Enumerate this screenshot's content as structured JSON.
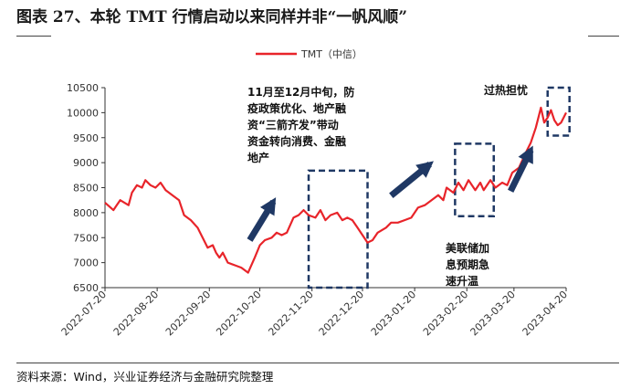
{
  "figure": {
    "title": "图表 27、本轮 TMT 行情启动以来同样并非“一帆风顺”",
    "source": "资料来源：Wind，兴业证券经济与金融研究院整理"
  },
  "annotations": {
    "policy": [
      "11月至12月中旬，防",
      "疫政策优化、地产融",
      "资“三箭齐发”带动",
      "资金转向消费、金融",
      "地产"
    ],
    "fed": [
      "美联储加",
      "息预期急",
      "速升温"
    ],
    "overheat": "过热担忧"
  },
  "colors": {
    "line": "#e8242a",
    "box": "#1f3864",
    "arrow": "#1f3864"
  },
  "chart_data": {
    "type": "line",
    "title": "",
    "xlabel": "",
    "ylabel": "",
    "ylim": [
      6500,
      10500
    ],
    "yticks": [
      6500,
      7000,
      7500,
      8000,
      8500,
      9000,
      9500,
      10000,
      10500
    ],
    "xticks": [
      "2022-07-20",
      "2022-08-20",
      "2022-09-20",
      "2022-10-20",
      "2022-11-20",
      "2022-12-20",
      "2023-01-20",
      "2023-02-20",
      "2023-03-20",
      "2023-04-20"
    ],
    "legend": "top-right",
    "series": [
      {
        "name": "TMT（中信）",
        "points": [
          [
            "2022-07-20",
            8200
          ],
          [
            "2022-07-25",
            8050
          ],
          [
            "2022-07-29",
            8250
          ],
          [
            "2022-08-03",
            8150
          ],
          [
            "2022-08-05",
            8400
          ],
          [
            "2022-08-08",
            8550
          ],
          [
            "2022-08-11",
            8500
          ],
          [
            "2022-08-13",
            8650
          ],
          [
            "2022-08-16",
            8550
          ],
          [
            "2022-08-19",
            8500
          ],
          [
            "2022-08-22",
            8600
          ],
          [
            "2022-08-25",
            8450
          ],
          [
            "2022-08-29",
            8350
          ],
          [
            "2022-09-02",
            8250
          ],
          [
            "2022-09-05",
            7950
          ],
          [
            "2022-09-09",
            7850
          ],
          [
            "2022-09-13",
            7700
          ],
          [
            "2022-09-16",
            7500
          ],
          [
            "2022-09-19",
            7300
          ],
          [
            "2022-09-22",
            7350
          ],
          [
            "2022-09-24",
            7200
          ],
          [
            "2022-09-26",
            7100
          ],
          [
            "2022-09-28",
            7200
          ],
          [
            "2022-10-01",
            7000
          ],
          [
            "2022-10-05",
            6950
          ],
          [
            "2022-10-09",
            6900
          ],
          [
            "2022-10-13",
            6800
          ],
          [
            "2022-10-17",
            7100
          ],
          [
            "2022-10-20",
            7350
          ],
          [
            "2022-10-23",
            7450
          ],
          [
            "2022-10-27",
            7500
          ],
          [
            "2022-10-30",
            7600
          ],
          [
            "2022-11-02",
            7550
          ],
          [
            "2022-11-05",
            7600
          ],
          [
            "2022-11-09",
            7900
          ],
          [
            "2022-11-12",
            7950
          ],
          [
            "2022-11-15",
            8050
          ],
          [
            "2022-11-18",
            7950
          ],
          [
            "2022-11-22",
            7900
          ],
          [
            "2022-11-25",
            8050
          ],
          [
            "2022-11-28",
            7850
          ],
          [
            "2022-12-01",
            7950
          ],
          [
            "2022-12-05",
            8000
          ],
          [
            "2022-12-08",
            7850
          ],
          [
            "2022-12-11",
            7900
          ],
          [
            "2022-12-14",
            7850
          ],
          [
            "2022-12-17",
            7700
          ],
          [
            "2022-12-20",
            7550
          ],
          [
            "2022-12-23",
            7400
          ],
          [
            "2022-12-26",
            7450
          ],
          [
            "2022-12-29",
            7600
          ],
          [
            "2023-01-03",
            7700
          ],
          [
            "2023-01-06",
            7800
          ],
          [
            "2023-01-10",
            7800
          ],
          [
            "2023-01-14",
            7850
          ],
          [
            "2023-01-18",
            7900
          ],
          [
            "2023-01-22",
            8100
          ],
          [
            "2023-01-26",
            8150
          ],
          [
            "2023-01-30",
            8250
          ],
          [
            "2023-02-03",
            8350
          ],
          [
            "2023-02-06",
            8250
          ],
          [
            "2023-02-08",
            8500
          ],
          [
            "2023-02-12",
            8400
          ],
          [
            "2023-02-15",
            8600
          ],
          [
            "2023-02-18",
            8450
          ],
          [
            "2023-02-21",
            8650
          ],
          [
            "2023-02-25",
            8450
          ],
          [
            "2023-02-28",
            8600
          ],
          [
            "2023-03-02",
            8450
          ],
          [
            "2023-03-06",
            8650
          ],
          [
            "2023-03-09",
            8500
          ],
          [
            "2023-03-13",
            8600
          ],
          [
            "2023-03-16",
            8550
          ],
          [
            "2023-03-19",
            8800
          ],
          [
            "2023-03-23",
            8900
          ],
          [
            "2023-03-27",
            9200
          ],
          [
            "2023-03-30",
            9400
          ],
          [
            "2023-04-02",
            9700
          ],
          [
            "2023-04-05",
            10100
          ],
          [
            "2023-04-07",
            9800
          ],
          [
            "2023-04-09",
            9900
          ],
          [
            "2023-04-11",
            10050
          ],
          [
            "2023-04-13",
            9850
          ],
          [
            "2023-04-15",
            9750
          ],
          [
            "2023-04-17",
            9800
          ],
          [
            "2023-04-20",
            10000
          ]
        ]
      }
    ],
    "boxes": [
      {
        "x": [
          "2022-11-18",
          "2022-12-23"
        ],
        "y": [
          6500,
          8840
        ]
      },
      {
        "x": [
          "2023-02-13",
          "2023-03-08"
        ],
        "y": [
          7930,
          9380
        ]
      },
      {
        "x": [
          "2023-04-09",
          "2023-04-22"
        ],
        "y": [
          9540,
          10500
        ]
      }
    ],
    "arrows": [
      {
        "from": [
          "2022-10-14",
          7450
        ],
        "to": [
          "2022-10-28",
          8220
        ]
      },
      {
        "from": [
          "2023-01-06",
          8340
        ],
        "to": [
          "2023-01-29",
          8970
        ]
      },
      {
        "from": [
          "2023-03-18",
          8430
        ],
        "to": [
          "2023-03-30",
          9250
        ]
      }
    ]
  }
}
